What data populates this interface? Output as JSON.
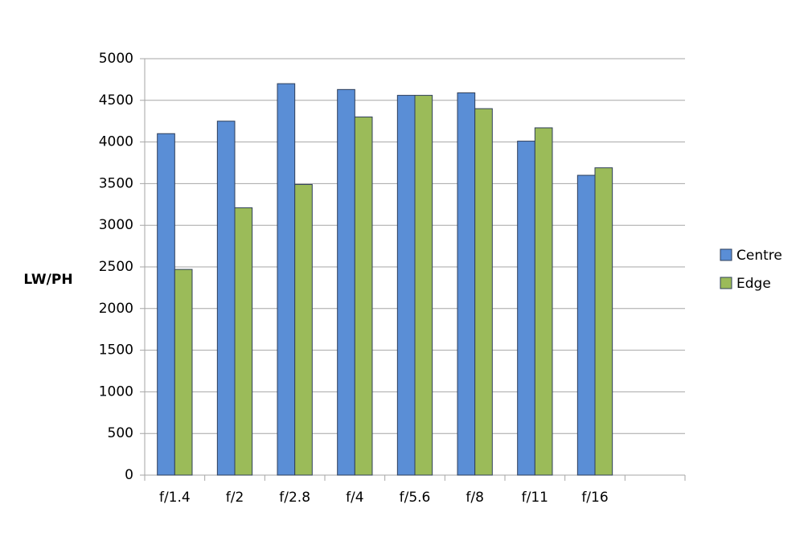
{
  "chart_data": {
    "type": "bar",
    "y_label": "LW/PH",
    "categories": [
      "f/1.4",
      "f/2",
      "f/2.8",
      "f/4",
      "f/5.6",
      "f/8",
      "f/11",
      "f/16",
      null
    ],
    "series": [
      {
        "name": "Centre",
        "color": "#5a8ed6",
        "values": [
          4100,
          4250,
          4700,
          4630,
          4560,
          4590,
          4010,
          3600,
          null
        ]
      },
      {
        "name": "Edge",
        "color": "#9bbb59",
        "values": [
          2470,
          3210,
          3490,
          4300,
          4560,
          4400,
          4170,
          3690,
          null
        ]
      }
    ],
    "ylim": [
      0,
      5000
    ],
    "yticks": [
      0,
      500,
      1000,
      1500,
      2000,
      2500,
      3000,
      3500,
      4000,
      4500,
      5000
    ],
    "grid": true,
    "legend": "right"
  }
}
